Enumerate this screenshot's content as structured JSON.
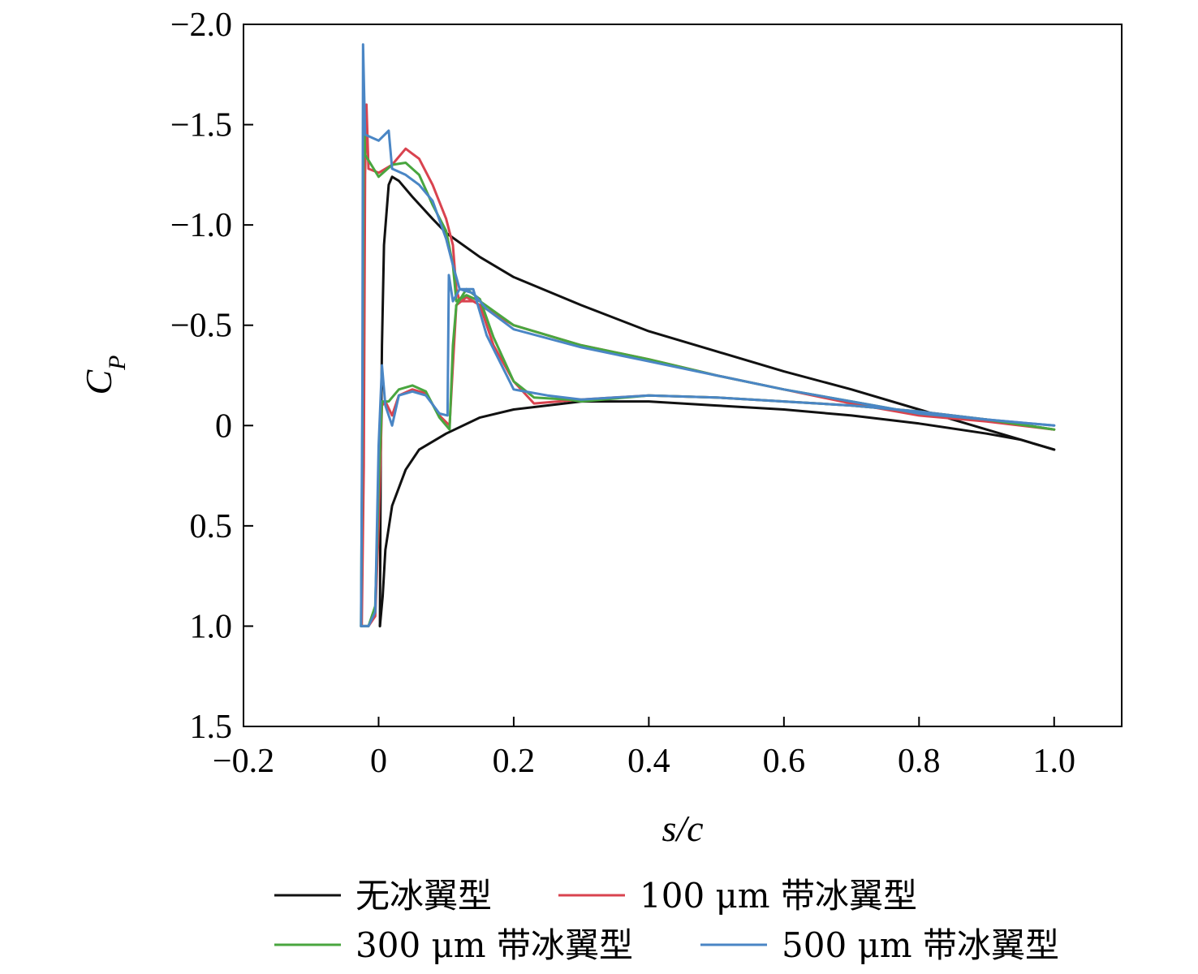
{
  "chart_data": {
    "type": "line",
    "xlabel": "s/c",
    "ylabel": "C_P",
    "xlim": [
      -0.2,
      1.1
    ],
    "ylim": [
      -2.0,
      1.5
    ],
    "y_inverted": true,
    "xticks": [
      -0.2,
      0,
      0.2,
      0.4,
      0.6,
      0.8,
      1.0
    ],
    "xtick_labels": [
      "−0.2",
      "0",
      "0.2",
      "0.4",
      "0.6",
      "0.8",
      "1.0"
    ],
    "yticks": [
      -2.0,
      -1.5,
      -1.0,
      -0.5,
      0,
      0.5,
      1.0,
      1.5
    ],
    "ytick_labels": [
      "−2.0",
      "−1.5",
      "−1.0",
      "−0.5",
      "0",
      "0.5",
      "1.0",
      "1.5"
    ],
    "grid": false,
    "legend_position": "bottom",
    "series": [
      {
        "name": "无冰翼型",
        "color": "#111111",
        "upper": [
          [
            0.002,
            1.0
          ],
          [
            0.003,
            0.2
          ],
          [
            0.005,
            -0.4
          ],
          [
            0.008,
            -0.9
          ],
          [
            0.015,
            -1.2
          ],
          [
            0.02,
            -1.24
          ],
          [
            0.03,
            -1.22
          ],
          [
            0.05,
            -1.14
          ],
          [
            0.08,
            -1.03
          ],
          [
            0.1,
            -0.96
          ],
          [
            0.15,
            -0.84
          ],
          [
            0.2,
            -0.74
          ],
          [
            0.3,
            -0.6
          ],
          [
            0.4,
            -0.47
          ],
          [
            0.5,
            -0.37
          ],
          [
            0.6,
            -0.27
          ],
          [
            0.7,
            -0.18
          ],
          [
            0.8,
            -0.08
          ],
          [
            0.9,
            0.02
          ],
          [
            0.95,
            0.07
          ],
          [
            1.0,
            0.12
          ]
        ],
        "lower": [
          [
            0.002,
            1.0
          ],
          [
            0.006,
            0.85
          ],
          [
            0.01,
            0.62
          ],
          [
            0.02,
            0.4
          ],
          [
            0.04,
            0.22
          ],
          [
            0.06,
            0.12
          ],
          [
            0.1,
            0.04
          ],
          [
            0.15,
            -0.04
          ],
          [
            0.2,
            -0.08
          ],
          [
            0.3,
            -0.12
          ],
          [
            0.4,
            -0.12
          ],
          [
            0.5,
            -0.1
          ],
          [
            0.6,
            -0.08
          ],
          [
            0.7,
            -0.05
          ],
          [
            0.8,
            -0.01
          ],
          [
            0.9,
            0.04
          ],
          [
            0.95,
            0.07
          ],
          [
            1.0,
            0.12
          ]
        ]
      },
      {
        "name": "100 μm 带冰翼型",
        "color": "#d9434f",
        "upper": [
          [
            -0.025,
            1.0
          ],
          [
            -0.022,
            0.2
          ],
          [
            -0.02,
            -1.25
          ],
          [
            -0.018,
            -1.6
          ],
          [
            -0.015,
            -1.28
          ],
          [
            0.0,
            -1.26
          ],
          [
            0.02,
            -1.3
          ],
          [
            0.04,
            -1.38
          ],
          [
            0.06,
            -1.33
          ],
          [
            0.08,
            -1.2
          ],
          [
            0.1,
            -1.03
          ],
          [
            0.11,
            -0.9
          ],
          [
            0.115,
            -0.68
          ],
          [
            0.12,
            -0.62
          ],
          [
            0.14,
            -0.62
          ],
          [
            0.16,
            -0.58
          ],
          [
            0.2,
            -0.5
          ],
          [
            0.3,
            -0.4
          ],
          [
            0.4,
            -0.33
          ],
          [
            0.5,
            -0.25
          ],
          [
            0.6,
            -0.18
          ],
          [
            0.7,
            -0.11
          ],
          [
            0.8,
            -0.05
          ],
          [
            0.9,
            -0.02
          ],
          [
            1.0,
            0.02
          ]
        ],
        "lower": [
          [
            -0.025,
            1.0
          ],
          [
            -0.015,
            1.0
          ],
          [
            -0.005,
            0.95
          ],
          [
            0.0,
            0.5
          ],
          [
            0.005,
            -0.1
          ],
          [
            0.01,
            -0.12
          ],
          [
            0.02,
            -0.05
          ],
          [
            0.03,
            -0.15
          ],
          [
            0.05,
            -0.18
          ],
          [
            0.07,
            -0.16
          ],
          [
            0.09,
            -0.05
          ],
          [
            0.105,
            0.0
          ],
          [
            0.11,
            -0.3
          ],
          [
            0.115,
            -0.6
          ],
          [
            0.13,
            -0.64
          ],
          [
            0.15,
            -0.6
          ],
          [
            0.17,
            -0.4
          ],
          [
            0.2,
            -0.22
          ],
          [
            0.23,
            -0.11
          ],
          [
            0.3,
            -0.13
          ],
          [
            0.4,
            -0.15
          ],
          [
            0.5,
            -0.14
          ],
          [
            0.6,
            -0.12
          ],
          [
            0.7,
            -0.1
          ],
          [
            0.8,
            -0.07
          ],
          [
            0.9,
            -0.03
          ],
          [
            1.0,
            0.02
          ]
        ]
      },
      {
        "name": "300 μm 带冰翼型",
        "color": "#49a63f",
        "upper": [
          [
            -0.026,
            1.0
          ],
          [
            -0.024,
            0.0
          ],
          [
            -0.022,
            -1.6
          ],
          [
            -0.02,
            -1.35
          ],
          [
            0.0,
            -1.24
          ],
          [
            0.02,
            -1.3
          ],
          [
            0.04,
            -1.31
          ],
          [
            0.06,
            -1.25
          ],
          [
            0.08,
            -1.1
          ],
          [
            0.1,
            -0.97
          ],
          [
            0.11,
            -0.8
          ],
          [
            0.115,
            -0.62
          ],
          [
            0.13,
            -0.65
          ],
          [
            0.15,
            -0.62
          ],
          [
            0.2,
            -0.5
          ],
          [
            0.3,
            -0.4
          ],
          [
            0.4,
            -0.33
          ],
          [
            0.5,
            -0.25
          ],
          [
            0.6,
            -0.18
          ],
          [
            0.7,
            -0.12
          ],
          [
            0.8,
            -0.06
          ],
          [
            0.9,
            -0.03
          ],
          [
            1.0,
            0.02
          ]
        ],
        "lower": [
          [
            -0.026,
            1.0
          ],
          [
            -0.015,
            1.0
          ],
          [
            -0.005,
            0.9
          ],
          [
            0.0,
            0.3
          ],
          [
            0.005,
            -0.12
          ],
          [
            0.015,
            -0.12
          ],
          [
            0.03,
            -0.18
          ],
          [
            0.05,
            -0.2
          ],
          [
            0.07,
            -0.17
          ],
          [
            0.09,
            -0.04
          ],
          [
            0.105,
            0.02
          ],
          [
            0.11,
            -0.4
          ],
          [
            0.115,
            -0.6
          ],
          [
            0.13,
            -0.68
          ],
          [
            0.15,
            -0.63
          ],
          [
            0.17,
            -0.44
          ],
          [
            0.2,
            -0.22
          ],
          [
            0.23,
            -0.14
          ],
          [
            0.28,
            -0.13
          ],
          [
            0.3,
            -0.12
          ],
          [
            0.4,
            -0.15
          ],
          [
            0.5,
            -0.14
          ],
          [
            0.6,
            -0.12
          ],
          [
            0.7,
            -0.1
          ],
          [
            0.8,
            -0.07
          ],
          [
            0.9,
            -0.03
          ],
          [
            1.0,
            0.02
          ]
        ]
      },
      {
        "name": "500 μm 带冰翼型",
        "color": "#4a86c5",
        "upper": [
          [
            -0.026,
            1.0
          ],
          [
            -0.024,
            -0.2
          ],
          [
            -0.023,
            -1.9
          ],
          [
            -0.02,
            -1.45
          ],
          [
            0.0,
            -1.42
          ],
          [
            0.015,
            -1.47
          ],
          [
            0.02,
            -1.28
          ],
          [
            0.04,
            -1.25
          ],
          [
            0.06,
            -1.2
          ],
          [
            0.08,
            -1.12
          ],
          [
            0.1,
            -0.93
          ],
          [
            0.11,
            -0.8
          ],
          [
            0.12,
            -0.68
          ],
          [
            0.14,
            -0.66
          ],
          [
            0.16,
            -0.58
          ],
          [
            0.2,
            -0.48
          ],
          [
            0.3,
            -0.39
          ],
          [
            0.4,
            -0.32
          ],
          [
            0.5,
            -0.25
          ],
          [
            0.6,
            -0.18
          ],
          [
            0.7,
            -0.12
          ],
          [
            0.8,
            -0.06
          ],
          [
            0.9,
            -0.03
          ],
          [
            1.0,
            0.0
          ]
        ],
        "lower": [
          [
            -0.026,
            1.0
          ],
          [
            -0.015,
            1.0
          ],
          [
            -0.005,
            0.93
          ],
          [
            0.0,
            0.1
          ],
          [
            0.005,
            -0.3
          ],
          [
            0.01,
            -0.1
          ],
          [
            0.02,
            0.0
          ],
          [
            0.03,
            -0.15
          ],
          [
            0.05,
            -0.17
          ],
          [
            0.07,
            -0.15
          ],
          [
            0.09,
            -0.06
          ],
          [
            0.102,
            -0.05
          ],
          [
            0.104,
            -0.75
          ],
          [
            0.11,
            -0.62
          ],
          [
            0.12,
            -0.68
          ],
          [
            0.14,
            -0.68
          ],
          [
            0.16,
            -0.45
          ],
          [
            0.2,
            -0.18
          ],
          [
            0.25,
            -0.15
          ],
          [
            0.3,
            -0.13
          ],
          [
            0.4,
            -0.15
          ],
          [
            0.5,
            -0.14
          ],
          [
            0.6,
            -0.12
          ],
          [
            0.7,
            -0.1
          ],
          [
            0.8,
            -0.07
          ],
          [
            0.9,
            -0.03
          ],
          [
            1.0,
            0.0
          ]
        ]
      }
    ]
  }
}
